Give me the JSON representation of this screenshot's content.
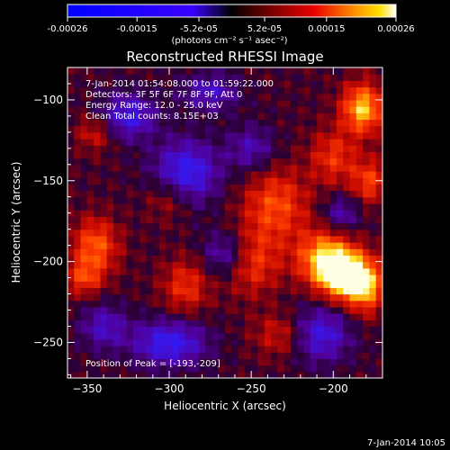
{
  "colorbar": {
    "tick_labels": [
      "-0.00026",
      "-0.00015",
      "-5.2e-05",
      "5.2e-05",
      "0.00015",
      "0.00026"
    ],
    "tick_values": [
      -0.00026,
      -0.00015,
      -5.2e-05,
      5.2e-05,
      0.00015,
      0.00026
    ],
    "range": [
      -0.00026,
      0.00026
    ],
    "units": "(photons cm⁻² s⁻¹ asec⁻²)"
  },
  "chart_data": {
    "type": "heatmap",
    "title": "Reconstructed RHESSI Image",
    "xlabel": "Heliocentric X (arcsec)",
    "ylabel": "Heliocentric Y (arcsec)",
    "xlim": [
      -362,
      -170
    ],
    "ylim": [
      -272,
      -80
    ],
    "xticks": [
      -350,
      -300,
      -250,
      -200
    ],
    "yticks": [
      -100,
      -150,
      -200,
      -250
    ],
    "info_lines": [
      "7-Jan-2014 01:54:08.000 to 01:59:22.000",
      "Detectors: 3F 5F 6F 7F 8F 9F, Att 0",
      "Energy Range: 12.0 - 25.0 keV",
      "Clean    Total counts: 8.15E+03"
    ],
    "peak_label": "Position of Peak = [-193,-209]",
    "peak": {
      "x": -193,
      "y": -209
    },
    "hotspots": [
      {
        "x": -193,
        "y": -209,
        "amp": 1.0,
        "sx": 10,
        "sy": 10
      },
      {
        "x": -205,
        "y": -198,
        "amp": 0.85,
        "sx": 12,
        "sy": 12
      },
      {
        "x": -180,
        "y": -215,
        "amp": 0.7,
        "sx": 8,
        "sy": 12
      },
      {
        "x": -182,
        "y": -105,
        "amp": 0.85,
        "sx": 9,
        "sy": 11
      },
      {
        "x": -178,
        "y": -150,
        "amp": 0.5,
        "sx": 8,
        "sy": 10
      },
      {
        "x": -345,
        "y": -190,
        "amp": 0.6,
        "sx": 10,
        "sy": 12
      },
      {
        "x": -352,
        "y": -210,
        "amp": 0.45,
        "sx": 8,
        "sy": 8
      },
      {
        "x": -235,
        "y": -165,
        "amp": 0.55,
        "sx": 14,
        "sy": 16
      },
      {
        "x": -250,
        "y": -200,
        "amp": 0.5,
        "sx": 12,
        "sy": 14
      },
      {
        "x": -290,
        "y": -215,
        "amp": 0.45,
        "sx": 10,
        "sy": 12
      },
      {
        "x": -345,
        "y": -120,
        "amp": 0.35,
        "sx": 8,
        "sy": 8
      },
      {
        "x": -200,
        "y": -135,
        "amp": 0.45,
        "sx": 10,
        "sy": 12
      },
      {
        "x": -230,
        "y": -245,
        "amp": 0.45,
        "sx": 12,
        "sy": 10
      },
      {
        "x": -300,
        "y": -160,
        "amp": 0.35,
        "sx": 10,
        "sy": 10
      }
    ],
    "coldspots": [
      {
        "x": -290,
        "y": -145,
        "amp": 0.9,
        "sx": 14,
        "sy": 14
      },
      {
        "x": -300,
        "y": -250,
        "amp": 0.85,
        "sx": 16,
        "sy": 10
      },
      {
        "x": -210,
        "y": -245,
        "amp": 0.8,
        "sx": 14,
        "sy": 12
      },
      {
        "x": -325,
        "y": -110,
        "amp": 0.75,
        "sx": 12,
        "sy": 10
      },
      {
        "x": -275,
        "y": -95,
        "amp": 0.6,
        "sx": 12,
        "sy": 8
      },
      {
        "x": -265,
        "y": -195,
        "amp": 0.6,
        "sx": 10,
        "sy": 10
      },
      {
        "x": -340,
        "y": -240,
        "amp": 0.55,
        "sx": 10,
        "sy": 10
      },
      {
        "x": -195,
        "y": -170,
        "amp": 0.5,
        "sx": 8,
        "sy": 8
      },
      {
        "x": -250,
        "y": -130,
        "amp": 0.5,
        "sx": 10,
        "sy": 10
      }
    ]
  },
  "footer": {
    "timestamp": "7-Jan-2014 10:05"
  }
}
